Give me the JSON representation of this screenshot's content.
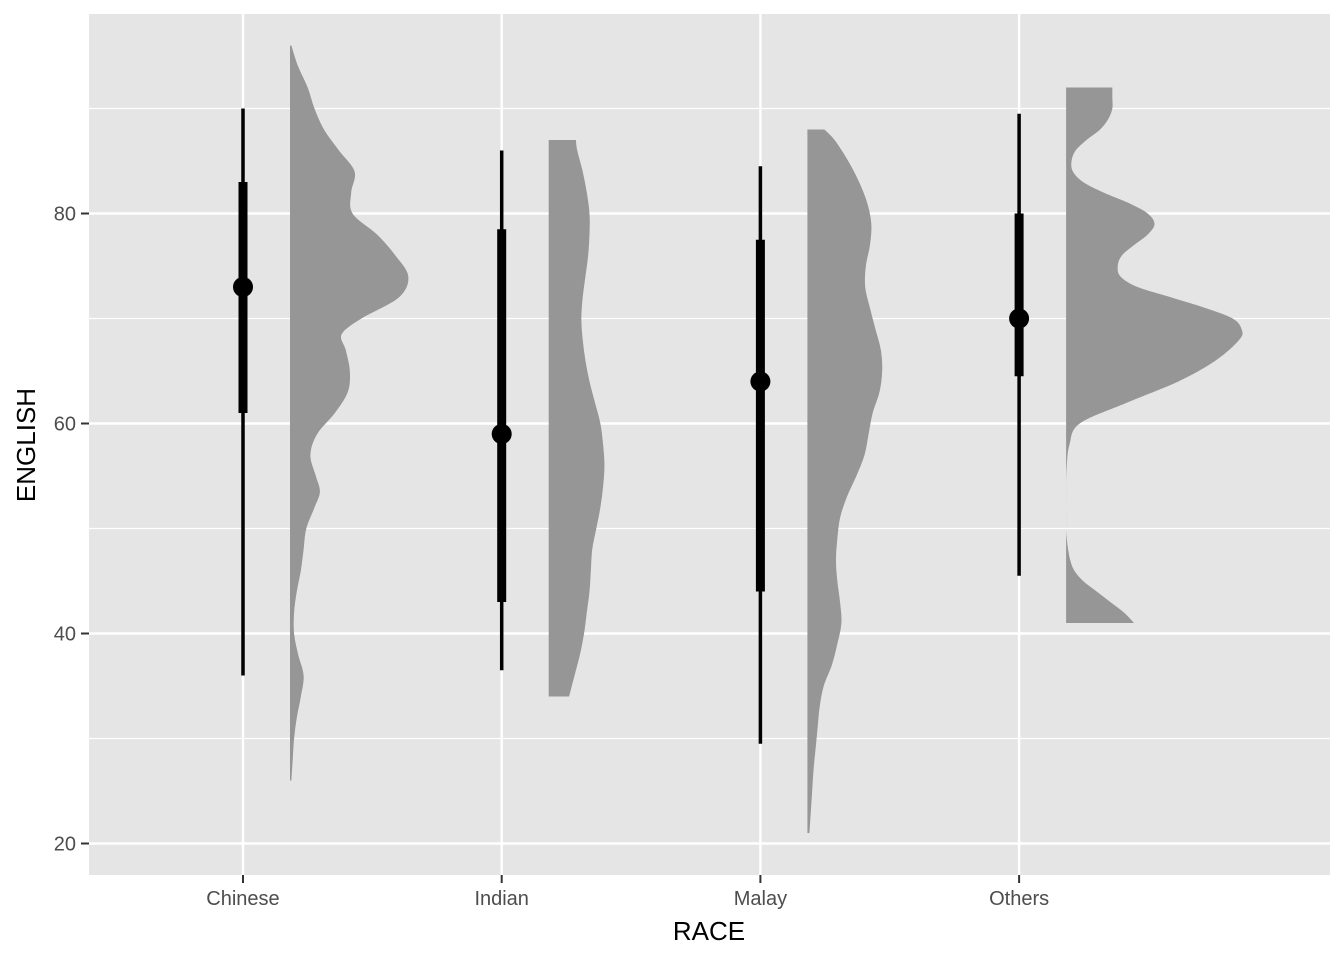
{
  "chart_data": {
    "type": "raincloud",
    "xlabel": "RACE",
    "ylabel": "ENGLISH",
    "ylim": [
      17,
      99
    ],
    "y_ticks": [
      20,
      40,
      60,
      80
    ],
    "y_minor_ticks": [
      30,
      50,
      70,
      90
    ],
    "categories": [
      "Chinese",
      "Indian",
      "Malay",
      "Others"
    ],
    "grid": true,
    "background": "#e5e5e5",
    "grid_color": "#ffffff",
    "density_fill": "#969696",
    "point_color": "#000000",
    "groups": [
      {
        "category": "Chinese",
        "median": 73,
        "interval_66": [
          61,
          83
        ],
        "interval_95": [
          36,
          90
        ],
        "density": {
          "y": [
            26,
            28,
            30,
            32,
            34,
            36,
            38,
            40,
            42,
            44,
            46,
            48,
            50,
            52,
            53.5,
            55,
            57,
            59,
            61,
            63,
            65,
            67,
            68.5,
            70,
            72,
            74,
            76,
            78,
            80,
            82,
            84,
            86,
            88,
            90,
            92,
            94,
            96
          ],
          "w": [
            0.02,
            0.04,
            0.06,
            0.1,
            0.16,
            0.2,
            0.12,
            0.06,
            0.06,
            0.1,
            0.16,
            0.2,
            0.24,
            0.36,
            0.44,
            0.38,
            0.3,
            0.4,
            0.66,
            0.85,
            0.88,
            0.82,
            0.76,
            1.05,
            1.6,
            1.74,
            1.55,
            1.28,
            0.92,
            0.9,
            0.95,
            0.72,
            0.5,
            0.36,
            0.26,
            0.12,
            0.02
          ]
        }
      },
      {
        "category": "Indian",
        "median": 59,
        "interval_66": [
          43,
          78.5
        ],
        "interval_95": [
          36.5,
          86
        ],
        "density": {
          "y": [
            34,
            36,
            38,
            40,
            42,
            44,
            46,
            48,
            50,
            52,
            54,
            56,
            58,
            60,
            62,
            64,
            66,
            68,
            70,
            72,
            74,
            76,
            78,
            80,
            82,
            84,
            86,
            87
          ],
          "w": [
            0.3,
            0.38,
            0.46,
            0.52,
            0.56,
            0.6,
            0.62,
            0.64,
            0.7,
            0.76,
            0.8,
            0.82,
            0.8,
            0.76,
            0.68,
            0.6,
            0.54,
            0.5,
            0.48,
            0.5,
            0.54,
            0.58,
            0.6,
            0.6,
            0.56,
            0.5,
            0.42,
            0.4
          ]
        }
      },
      {
        "category": "Malay",
        "median": 64,
        "interval_66": [
          44,
          77.5
        ],
        "interval_95": [
          29.5,
          84.5
        ],
        "density": {
          "y": [
            21,
            23,
            25,
            27,
            29,
            31,
            33,
            35,
            37,
            39,
            41,
            43,
            45,
            47,
            49,
            51,
            53,
            55,
            57,
            59,
            61,
            63,
            65,
            67,
            69,
            71,
            73,
            75,
            77,
            79,
            81,
            83,
            85,
            87,
            88
          ],
          "w": [
            0.03,
            0.05,
            0.07,
            0.09,
            0.12,
            0.15,
            0.18,
            0.24,
            0.36,
            0.44,
            0.5,
            0.48,
            0.44,
            0.42,
            0.44,
            0.48,
            0.58,
            0.72,
            0.84,
            0.9,
            0.96,
            1.06,
            1.1,
            1.08,
            1.0,
            0.92,
            0.85,
            0.86,
            0.92,
            0.94,
            0.88,
            0.76,
            0.6,
            0.4,
            0.25
          ]
        }
      },
      {
        "category": "Others",
        "median": 70,
        "interval_66": [
          64.5,
          80
        ],
        "interval_95": [
          45.5,
          89.5
        ],
        "density": {
          "y": [
            41,
            42,
            43,
            44,
            45,
            46,
            47,
            48,
            49,
            50,
            52,
            54,
            56,
            58,
            60,
            62,
            64,
            66,
            68,
            69,
            70,
            71,
            72,
            73,
            74,
            75,
            76,
            77,
            78,
            79,
            80,
            81,
            82,
            83,
            84,
            85,
            86,
            87,
            88,
            89,
            90,
            91,
            92
          ],
          "w": [
            1.0,
            0.85,
            0.65,
            0.45,
            0.25,
            0.12,
            0.06,
            0.03,
            0.01,
            0.0,
            0.0,
            0.0,
            0.01,
            0.05,
            0.2,
            0.9,
            1.65,
            2.2,
            2.55,
            2.58,
            2.45,
            2.05,
            1.55,
            1.05,
            0.8,
            0.76,
            0.82,
            1.0,
            1.2,
            1.3,
            1.2,
            0.92,
            0.55,
            0.25,
            0.1,
            0.08,
            0.14,
            0.3,
            0.5,
            0.62,
            0.68,
            0.68,
            0.68
          ]
        }
      }
    ]
  }
}
